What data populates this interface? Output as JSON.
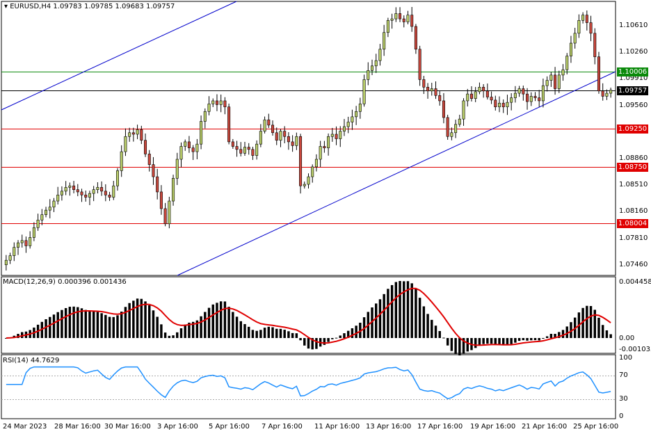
{
  "header": {
    "symbol": "EURUSD,H4",
    "ohlc": "1.09783 1.09785 1.09683 1.09757"
  },
  "macd": {
    "title": "MACD(12,26,9) 0.000396 0.001436",
    "axis_labels": [
      "0.004458",
      "0.00",
      "-0.001033"
    ]
  },
  "rsi": {
    "title": "RSI(14) 44.7629",
    "axis_labels": [
      "100",
      "70",
      "30",
      "0"
    ]
  },
  "price_axis": [
    "1.10610",
    "1.10260",
    "1.09910",
    "1.09560",
    "1.08860",
    "1.08510",
    "1.08160",
    "1.07810",
    "1.07460"
  ],
  "tags": [
    {
      "label": "1.10006",
      "bg": "#0a8a0a",
      "fg": "#ffffff"
    },
    {
      "label": "1.09757",
      "bg": "#000000",
      "fg": "#ffffff"
    },
    {
      "label": "1.09250",
      "bg": "#e00000",
      "fg": "#ffffff"
    },
    {
      "label": "1.08750",
      "bg": "#e00000",
      "fg": "#ffffff"
    },
    {
      "label": "1.08004",
      "bg": "#e00000",
      "fg": "#ffffff"
    }
  ],
  "time_axis": [
    "24 Mar 2023",
    "28 Mar 16:00",
    "30 Mar 16:00",
    "3 Apr 16:00",
    "5 Apr 16:00",
    "7 Apr 16:00",
    "11 Apr 16:00",
    "13 Apr 16:00",
    "17 Apr 16:00",
    "19 Apr 16:00",
    "21 Apr 16:00",
    "25 Apr 16:00"
  ],
  "colors": {
    "bull": "#b8cc6a",
    "bear": "#c9473c",
    "macd_signal": "#e00000",
    "rsi_line": "#1e90ff",
    "channel": "#0000cc",
    "support_green": "#0a8a0a",
    "hline_red": "#e00000"
  },
  "chart_data": {
    "type": "candlestick",
    "price_levels": [
      1.10006,
      1.09757,
      1.0925,
      1.0875,
      1.08004
    ],
    "ylim": [
      1.0732,
      1.1093
    ],
    "closes": [
      1.0752,
      1.0758,
      1.0769,
      1.0775,
      1.0778,
      1.0771,
      1.0782,
      1.0795,
      1.0805,
      1.0812,
      1.0818,
      1.0822,
      1.083,
      1.0838,
      1.0843,
      1.0848,
      1.085,
      1.0845,
      1.0842,
      1.0838,
      1.0835,
      1.084,
      1.0845,
      1.0848,
      1.0843,
      1.0838,
      1.0835,
      1.085,
      1.087,
      1.0895,
      1.0915,
      1.092,
      1.0918,
      1.0924,
      1.091,
      1.0892,
      1.0878,
      1.0862,
      1.0842,
      1.082,
      1.08,
      1.083,
      1.086,
      1.0885,
      1.0902,
      1.0908,
      1.09,
      1.0895,
      1.0905,
      1.0935,
      1.0948,
      1.0958,
      1.0962,
      1.0957,
      1.0962,
      1.0954,
      1.0908,
      1.0902,
      1.0898,
      1.0893,
      1.0901,
      1.0898,
      1.089,
      1.0905,
      1.0922,
      1.0937,
      1.093,
      1.092,
      1.091,
      1.0922,
      1.0915,
      1.0908,
      1.0903,
      1.0915,
      1.085,
      1.0852,
      1.0862,
      1.0875,
      1.0885,
      1.0902,
      1.09,
      1.0915,
      1.0918,
      1.0912,
      1.0922,
      1.0928,
      1.0934,
      1.0941,
      1.0948,
      1.0958,
      1.099,
      1.1002,
      1.1008,
      1.1015,
      1.103,
      1.1052,
      1.1068,
      1.107,
      1.1077,
      1.107,
      1.1066,
      1.1075,
      1.106,
      1.103,
      1.099,
      1.098,
      1.0975,
      1.0978,
      1.0969,
      1.0962,
      1.094,
      1.0915,
      1.092,
      1.0931,
      1.0938,
      1.0962,
      1.0971,
      1.0965,
      1.0974,
      1.098,
      1.0975,
      1.0967,
      1.0963,
      1.0954,
      1.0959,
      1.0954,
      1.096,
      1.0966,
      1.0972,
      1.0978,
      1.0971,
      1.0961,
      1.0968,
      1.0966,
      1.0962,
      1.0982,
      1.0989,
      1.0996,
      1.0978,
      1.0996,
      1.1003,
      1.1021,
      1.1038,
      1.1051,
      1.1068,
      1.1075,
      1.1065,
      1.1051,
      1.102,
      1.0975,
      1.0968,
      1.0972,
      1.0976
    ]
  }
}
